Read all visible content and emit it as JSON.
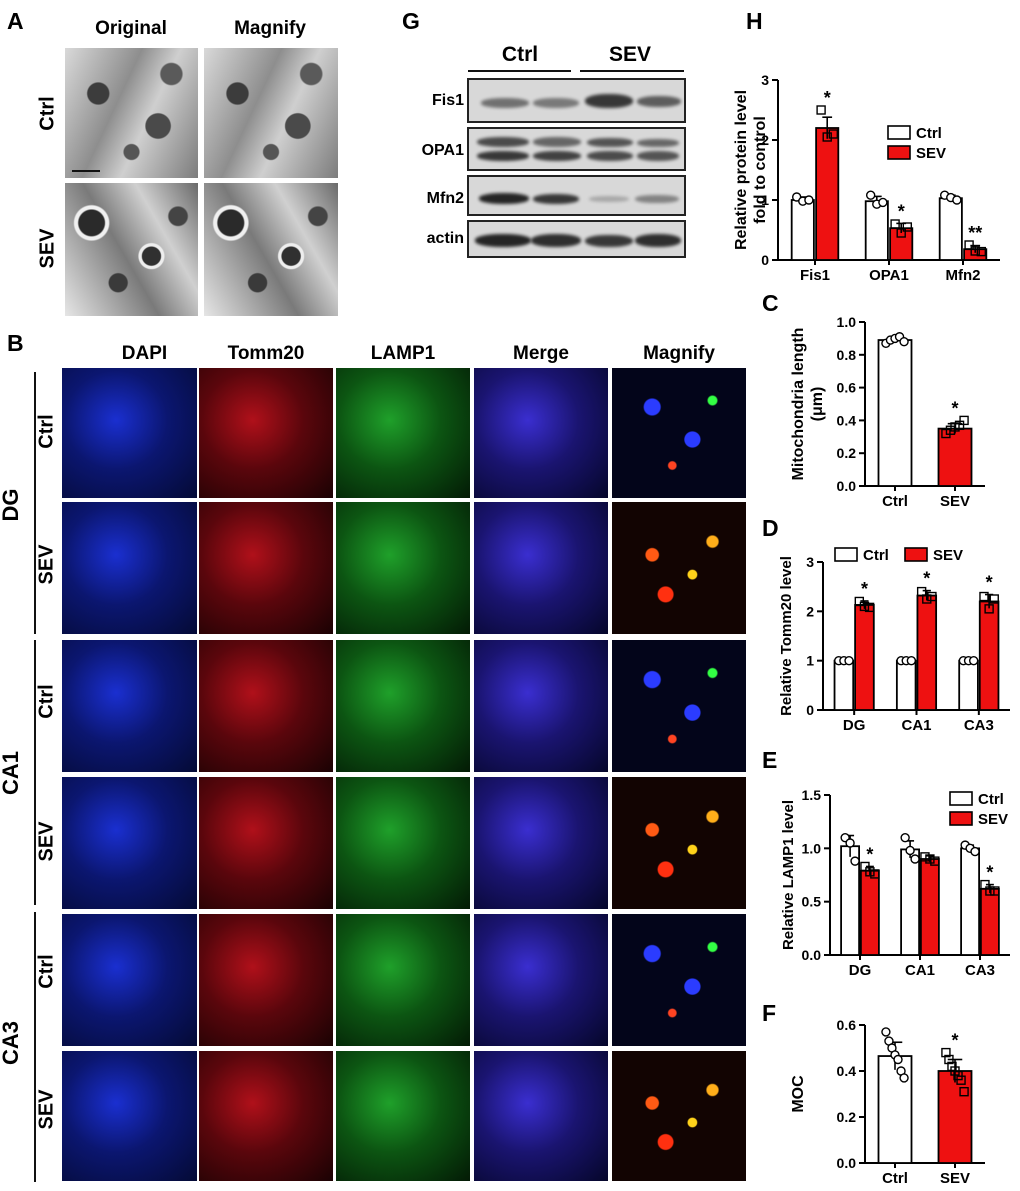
{
  "panels": {
    "A": {
      "letter": "A",
      "col_original": "Original",
      "col_magnify": "Magnify",
      "row_ctrl": "Ctrl",
      "row_sev": "SEV"
    },
    "B": {
      "letter": "B",
      "cols": [
        "DAPI",
        "Tomm20",
        "LAMP1",
        "Merge",
        "Magnify"
      ],
      "groups": [
        "DG",
        "CA1",
        "CA3"
      ],
      "row_ctrl": "Ctrl",
      "row_sev": "SEV"
    },
    "G": {
      "letter": "G",
      "group_ctrl": "Ctrl",
      "group_sev": "SEV",
      "proteins": [
        "Fis1",
        "OPA1",
        "Mfn2",
        "actin"
      ]
    },
    "H": {
      "letter": "H"
    },
    "C": {
      "letter": "C"
    },
    "D": {
      "letter": "D"
    },
    "E": {
      "letter": "E"
    },
    "F": {
      "letter": "F"
    }
  },
  "colors": {
    "ctrl_bar": "#ffffff",
    "sev_bar": "#ee1111",
    "axis": "#000000"
  },
  "chart_data": [
    {
      "id": "H",
      "type": "bar",
      "ylabel": "Relative protein level\nfold to control",
      "categories": [
        "Fis1",
        "OPA1",
        "Mfn2"
      ],
      "ylim": [
        0,
        3
      ],
      "yticks": [
        0,
        1,
        2,
        3
      ],
      "series": [
        {
          "name": "Ctrl",
          "values": [
            1.0,
            0.98,
            1.03
          ],
          "errors": [
            0.05,
            0.08,
            0.05
          ],
          "points": [
            [
              1.05,
              0.98,
              1.0
            ],
            [
              1.08,
              0.93,
              0.96
            ],
            [
              1.08,
              1.04,
              1.0
            ]
          ]
        },
        {
          "name": "SEV",
          "values": [
            2.2,
            0.53,
            0.18
          ],
          "errors": [
            0.18,
            0.08,
            0.06
          ],
          "points": [
            [
              2.5,
              2.05,
              2.1
            ],
            [
              0.6,
              0.45,
              0.55
            ],
            [
              0.25,
              0.15,
              0.14
            ]
          ]
        }
      ],
      "annotations": [
        "*",
        "*",
        "**"
      ],
      "legend": "right"
    },
    {
      "id": "C",
      "type": "bar",
      "ylabel": "Mitochondria length\n(μm)",
      "categories": [
        "Ctrl",
        "SEV"
      ],
      "ylim": [
        0,
        1.0
      ],
      "yticks": [
        0.0,
        0.2,
        0.4,
        0.6,
        0.8,
        1.0
      ],
      "values": [
        0.89,
        0.35
      ],
      "errors": [
        0.015,
        0.03
      ],
      "points": [
        [
          0.87,
          0.89,
          0.9,
          0.91,
          0.88
        ],
        [
          0.32,
          0.34,
          0.36,
          0.37,
          0.4
        ]
      ],
      "annotations": [
        "",
        "*"
      ]
    },
    {
      "id": "D",
      "type": "bar",
      "ylabel": "Relative Tomm20 level",
      "categories": [
        "DG",
        "CA1",
        "CA3"
      ],
      "ylim": [
        0,
        3
      ],
      "yticks": [
        0,
        1,
        2,
        3
      ],
      "series": [
        {
          "name": "Ctrl",
          "values": [
            1.0,
            1.0,
            1.0
          ],
          "errors": [
            0.02,
            0.02,
            0.02
          ],
          "points": [
            [
              1.0,
              1.0,
              1.0
            ],
            [
              1.0,
              1.0,
              1.0
            ],
            [
              1.0,
              1.0,
              1.0
            ]
          ]
        },
        {
          "name": "SEV",
          "values": [
            2.13,
            2.32,
            2.2
          ],
          "errors": [
            0.08,
            0.1,
            0.14
          ],
          "points": [
            [
              2.2,
              2.1,
              2.08
            ],
            [
              2.4,
              2.25,
              2.3
            ],
            [
              2.3,
              2.05,
              2.25
            ]
          ]
        }
      ],
      "annotations": [
        "*",
        "*",
        "*"
      ],
      "legend": "top"
    },
    {
      "id": "E",
      "type": "bar",
      "ylabel": "Relative LAMP1 level",
      "categories": [
        "DG",
        "CA1",
        "CA3"
      ],
      "ylim": [
        0,
        1.5
      ],
      "yticks": [
        0.0,
        0.5,
        1.0,
        1.5
      ],
      "series": [
        {
          "name": "Ctrl",
          "values": [
            1.02,
            0.99,
            1.0
          ],
          "errors": [
            0.1,
            0.08,
            0.03
          ],
          "points": [
            [
              1.1,
              1.05,
              0.88
            ],
            [
              1.1,
              0.98,
              0.9
            ],
            [
              1.03,
              1.0,
              0.97
            ]
          ]
        },
        {
          "name": "SEV",
          "values": [
            0.79,
            0.9,
            0.62
          ],
          "errors": [
            0.04,
            0.03,
            0.04
          ],
          "points": [
            [
              0.83,
              0.78,
              0.76
            ],
            [
              0.92,
              0.9,
              0.88
            ],
            [
              0.66,
              0.6,
              0.6
            ]
          ]
        }
      ],
      "annotations": [
        "*",
        "",
        "*"
      ],
      "legend": "right"
    },
    {
      "id": "F",
      "type": "bar",
      "ylabel": "MOC",
      "categories": [
        "Ctrl",
        "SEV"
      ],
      "ylim": [
        0,
        0.6
      ],
      "yticks": [
        0.0,
        0.2,
        0.4,
        0.6
      ],
      "values": [
        0.465,
        0.4
      ],
      "errors": [
        0.06,
        0.05
      ],
      "points": [
        [
          0.57,
          0.53,
          0.5,
          0.47,
          0.45,
          0.4,
          0.37
        ],
        [
          0.48,
          0.45,
          0.42,
          0.4,
          0.38,
          0.36,
          0.31
        ]
      ],
      "annotations": [
        "",
        "*"
      ]
    }
  ]
}
